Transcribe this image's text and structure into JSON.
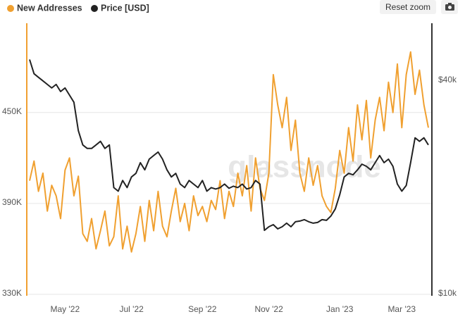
{
  "reset_button": "Reset zoom",
  "chart_data": {
    "type": "line",
    "watermark": "glassnode",
    "categories": [
      null,
      null,
      null,
      null,
      null,
      null,
      null,
      null,
      "May '22",
      null,
      null,
      null,
      null,
      null,
      null,
      null,
      null,
      null,
      null,
      null,
      null,
      null,
      null,
      "Jul '22",
      null,
      null,
      null,
      null,
      null,
      null,
      null,
      null,
      null,
      null,
      null,
      null,
      null,
      null,
      null,
      "Sep '22",
      null,
      null,
      null,
      null,
      null,
      null,
      null,
      null,
      null,
      null,
      null,
      null,
      null,
      null,
      "Nov '22",
      null,
      null,
      null,
      null,
      null,
      null,
      null,
      null,
      null,
      null,
      null,
      null,
      null,
      null,
      null,
      "Jan '23",
      null,
      null,
      null,
      null,
      null,
      null,
      null,
      null,
      null,
      null,
      null,
      null,
      null,
      "Mar '23",
      null,
      null,
      null,
      null,
      null,
      null
    ],
    "series": [
      {
        "name": "New Addresses",
        "color": "#f0a030",
        "values": [
          405000,
          418000,
          398000,
          410000,
          385000,
          402000,
          395000,
          380000,
          412000,
          420000,
          395000,
          408000,
          370000,
          365000,
          380000,
          360000,
          372000,
          385000,
          362000,
          368000,
          395000,
          360000,
          375000,
          358000,
          370000,
          388000,
          365000,
          392000,
          372000,
          398000,
          375000,
          368000,
          385000,
          400000,
          378000,
          390000,
          372000,
          395000,
          382000,
          388000,
          378000,
          392000,
          386000,
          405000,
          380000,
          398000,
          388000,
          410000,
          395000,
          415000,
          385000,
          420000,
          400000,
          392000,
          410000,
          475000,
          455000,
          440000,
          460000,
          425000,
          445000,
          410000,
          398000,
          420000,
          402000,
          415000,
          395000,
          388000,
          384000,
          400000,
          425000,
          410000,
          440000,
          418000,
          455000,
          432000,
          458000,
          420000,
          445000,
          460000,
          438000,
          470000,
          450000,
          482000,
          440000,
          475000,
          490000,
          462000,
          478000,
          455000,
          440000
        ]
      },
      {
        "name": "Price [USD]",
        "color": "#222222",
        "axis": "y2",
        "values": [
          43000,
          41000,
          40500,
          40000,
          39500,
          39000,
          39500,
          38500,
          39000,
          38000,
          37000,
          33000,
          31000,
          30500,
          30500,
          31000,
          31500,
          30500,
          31000,
          25000,
          24500,
          26000,
          25000,
          26500,
          27000,
          28500,
          27500,
          29000,
          29500,
          30000,
          29000,
          27500,
          26500,
          27000,
          25500,
          25000,
          26000,
          25500,
          25000,
          26000,
          24500,
          25000,
          24800,
          25000,
          25500,
          24900,
          25200,
          25000,
          25500,
          24800,
          25000,
          26000,
          25500,
          19000,
          19500,
          19800,
          19200,
          19500,
          20000,
          19500,
          20200,
          20300,
          20500,
          20200,
          20000,
          20100,
          20500,
          20400,
          21000,
          22000,
          24000,
          26500,
          27000,
          26800,
          27500,
          28300,
          28000,
          27500,
          28500,
          29500,
          28500,
          29000,
          28000,
          25500,
          24500,
          25300,
          28500,
          32000,
          31500,
          32000,
          31000
        ]
      }
    ],
    "ylim": [
      330000,
      508000
    ],
    "yticks": [
      {
        "value": 330000,
        "label": "330K"
      },
      {
        "value": 390000,
        "label": "390K"
      },
      {
        "value": 450000,
        "label": "450K"
      }
    ],
    "y2lim": [
      10000,
      47900
    ],
    "y2ticks": [
      {
        "value": 10000,
        "label": "$10k"
      },
      {
        "value": 40000,
        "label": "$40k"
      }
    ],
    "grid": true
  }
}
